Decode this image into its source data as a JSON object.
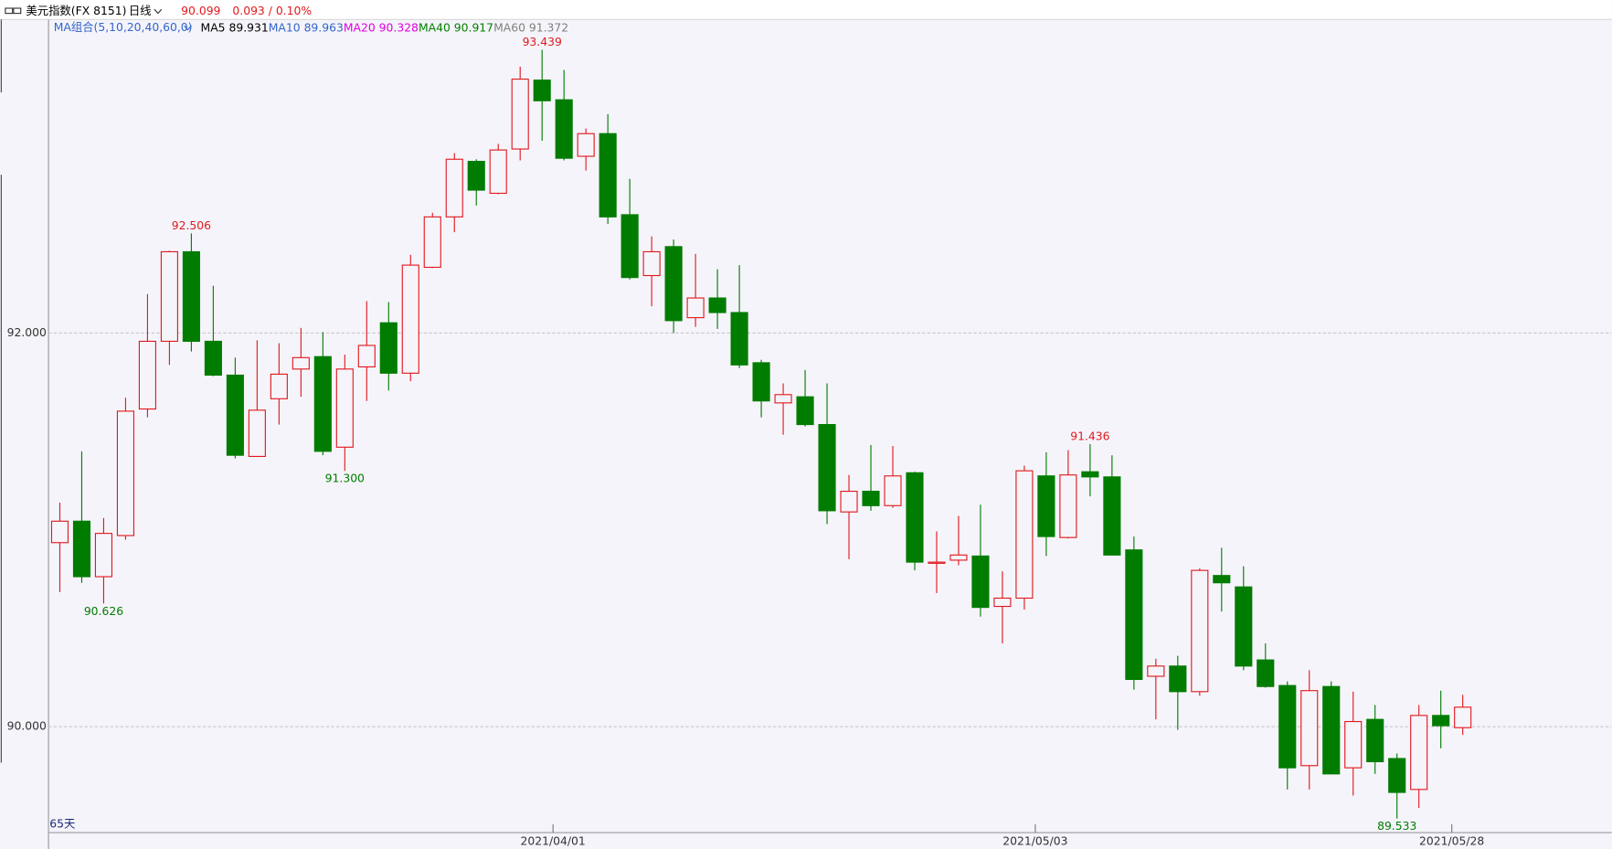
{
  "header": {
    "title": "美元指数(FX 8151)",
    "period": "日线",
    "price": 90.099,
    "change": "0.093 / 0.10%",
    "ma_group": "MA组合(5,10,20,40,60,0)",
    "ma": [
      {
        "label": "MA5",
        "value": 89.931,
        "color": "#000000"
      },
      {
        "label": "MA10",
        "value": 89.963,
        "color": "#3366cc"
      },
      {
        "label": "MA20",
        "value": 90.328,
        "color": "#e000e0"
      },
      {
        "label": "MA40",
        "value": 90.917,
        "color": "#008000"
      },
      {
        "label": "MA60",
        "value": 91.372,
        "color": "#808080"
      }
    ]
  },
  "chart_data": {
    "type": "candlestick",
    "span_label": "65天",
    "up_color": "#e0191e",
    "down_color": "#007c00",
    "ylim": [
      89.462,
      93.598
    ],
    "yticks": [
      {
        "value": 90,
        "label": "90.000"
      },
      {
        "value": 92,
        "label": "92.000"
      }
    ],
    "grid": true,
    "categories": [
      null,
      null,
      null,
      null,
      null,
      null,
      null,
      null,
      null,
      null,
      null,
      null,
      null,
      null,
      null,
      null,
      null,
      null,
      null,
      null,
      null,
      null,
      null,
      "2021/04/01",
      null,
      null,
      null,
      null,
      null,
      null,
      null,
      null,
      null,
      null,
      null,
      null,
      null,
      null,
      null,
      null,
      null,
      null,
      null,
      null,
      null,
      "2021/05/03",
      null,
      null,
      null,
      null,
      null,
      null,
      null,
      null,
      null,
      null,
      null,
      null,
      null,
      null,
      null,
      null,
      null,
      null,
      "2021/05/28"
    ],
    "open": [
      90.935,
      91.044,
      90.762,
      90.971,
      91.614,
      91.958,
      92.413,
      91.958,
      91.786,
      91.373,
      91.666,
      91.817,
      91.88,
      91.42,
      91.828,
      92.052,
      91.796,
      92.334,
      92.59,
      92.872,
      92.71,
      92.935,
      93.285,
      93.185,
      92.898,
      93.013,
      92.601,
      92.292,
      92.439,
      92.078,
      92.178,
      92.104,
      91.849,
      91.645,
      91.676,
      91.535,
      91.091,
      91.196,
      91.123,
      91.29,
      90.83,
      90.846,
      90.867,
      90.611,
      90.653,
      91.274,
      90.961,
      91.295,
      91.269,
      90.898,
      90.256,
      90.308,
      90.178,
      90.768,
      90.71,
      90.339,
      90.209,
      89.802,
      90.204,
      89.791,
      90.037,
      89.838,
      89.681,
      90.057,
      89.995
    ],
    "high": [
      91.138,
      91.399,
      91.06,
      91.671,
      92.198,
      92.418,
      92.506,
      92.24,
      91.875,
      91.963,
      91.948,
      92.026,
      92.005,
      91.89,
      92.162,
      92.157,
      92.397,
      92.611,
      92.914,
      92.883,
      92.961,
      93.353,
      93.439,
      93.337,
      93.039,
      93.112,
      92.783,
      92.491,
      92.475,
      92.402,
      92.324,
      92.345,
      91.864,
      91.744,
      91.812,
      91.744,
      91.279,
      91.431,
      91.426,
      91.295,
      90.992,
      91.071,
      91.128,
      90.789,
      91.326,
      91.394,
      91.405,
      91.436,
      91.379,
      90.966,
      90.345,
      90.36,
      90.804,
      90.909,
      90.815,
      90.423,
      90.23,
      90.287,
      90.23,
      90.178,
      90.11,
      89.864,
      90.11,
      90.183,
      90.162
    ],
    "low": [
      90.684,
      90.731,
      90.626,
      90.95,
      91.572,
      91.838,
      91.906,
      91.781,
      91.363,
      91.373,
      91.535,
      91.676,
      91.379,
      91.3,
      91.655,
      91.708,
      91.755,
      92.33,
      92.512,
      92.648,
      92.705,
      92.877,
      92.977,
      92.877,
      92.825,
      92.554,
      92.272,
      92.136,
      92.0,
      92.031,
      92.021,
      91.822,
      91.572,
      91.483,
      91.525,
      91.029,
      90.851,
      91.097,
      91.112,
      90.794,
      90.679,
      90.82,
      90.559,
      90.423,
      90.595,
      90.867,
      90.956,
      91.17,
      90.872,
      90.188,
      90.037,
      89.984,
      90.157,
      90.585,
      90.287,
      90.198,
      89.681,
      89.681,
      89.76,
      89.65,
      89.76,
      89.533,
      89.587,
      89.89,
      89.958
    ],
    "close": [
      91.044,
      90.762,
      90.982,
      91.603,
      91.958,
      92.413,
      91.958,
      91.786,
      91.379,
      91.608,
      91.791,
      91.875,
      91.399,
      91.817,
      91.937,
      91.796,
      92.345,
      92.59,
      92.883,
      92.726,
      92.93,
      93.29,
      93.18,
      92.888,
      93.013,
      92.59,
      92.282,
      92.413,
      92.063,
      92.178,
      92.104,
      91.838,
      91.655,
      91.687,
      91.535,
      91.097,
      91.196,
      91.123,
      91.274,
      90.836,
      90.836,
      90.872,
      90.606,
      90.653,
      91.3,
      90.966,
      91.279,
      91.269,
      90.872,
      90.24,
      90.308,
      90.178,
      90.794,
      90.731,
      90.308,
      90.204,
      89.791,
      90.183,
      89.76,
      90.026,
      89.822,
      89.666,
      90.057,
      90.005,
      90.099
    ],
    "high_labels": [
      null,
      null,
      null,
      null,
      null,
      null,
      "92.506",
      null,
      null,
      null,
      null,
      null,
      null,
      null,
      null,
      null,
      null,
      null,
      null,
      null,
      null,
      null,
      "93.439",
      null,
      null,
      null,
      null,
      null,
      null,
      null,
      null,
      null,
      null,
      null,
      null,
      null,
      null,
      null,
      null,
      null,
      null,
      null,
      null,
      null,
      null,
      null,
      null,
      "91.436",
      null,
      null,
      null,
      null,
      null,
      null,
      null,
      null,
      null,
      null,
      null,
      null,
      null,
      null,
      null,
      null,
      null
    ],
    "low_labels": [
      null,
      null,
      "90.626",
      null,
      null,
      null,
      null,
      null,
      null,
      null,
      null,
      null,
      null,
      "91.300",
      null,
      null,
      null,
      null,
      null,
      null,
      null,
      null,
      null,
      null,
      null,
      null,
      null,
      null,
      null,
      null,
      null,
      null,
      null,
      null,
      null,
      null,
      null,
      null,
      null,
      null,
      null,
      null,
      null,
      null,
      null,
      null,
      null,
      null,
      null,
      null,
      null,
      null,
      null,
      null,
      null,
      null,
      null,
      null,
      null,
      null,
      null,
      "89.533",
      null,
      null,
      null
    ]
  }
}
